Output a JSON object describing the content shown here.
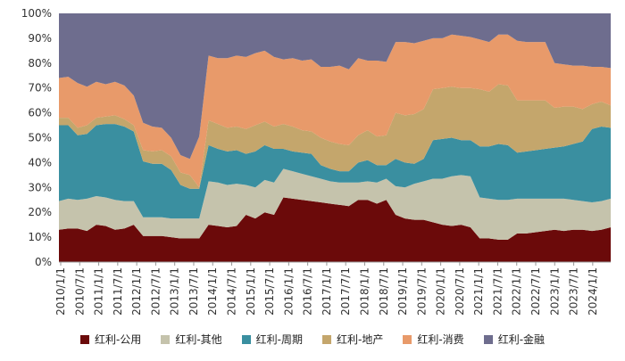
{
  "chart_data": {
    "type": "area",
    "stacked": true,
    "percent": true,
    "ylim": [
      0,
      100
    ],
    "y_ticks": [
      "0%",
      "10%",
      "20%",
      "30%",
      "40%",
      "50%",
      "60%",
      "70%",
      "80%",
      "90%",
      "100%"
    ],
    "x_ticks": [
      "2010/1/1",
      "2010/7/1",
      "2011/1/1",
      "2011/7/1",
      "2012/1/1",
      "2012/7/1",
      "2013/1/1",
      "2013/7/1",
      "2014/1/1",
      "2014/7/1",
      "2015/1/1",
      "2015/7/1",
      "2016/1/1",
      "2016/7/1",
      "2017/1/1",
      "2017/7/1",
      "2018/1/1",
      "2018/7/1",
      "2019/1/1",
      "2019/7/1",
      "2020/1/1",
      "2020/7/1",
      "2021/1/1",
      "2021/7/1",
      "2022/1/1",
      "2022/7/1",
      "2023/1/1",
      "2023/7/1",
      "2024/1/1"
    ],
    "grid": false,
    "legend_position": "bottom",
    "colors": [
      "#6b0a0a",
      "#c5c3ac",
      "#3a8fa0",
      "#c4a66c",
      "#e89a6a",
      "#6e6d8e"
    ],
    "series": [
      {
        "name": "红利-公用",
        "values": [
          13.0,
          13.5,
          13.5,
          12.5,
          15.0,
          14.5,
          13.0,
          13.5,
          15.0,
          10.5,
          10.5,
          10.5,
          10.0,
          9.5,
          9.5,
          9.5,
          15.0,
          14.5,
          14.0,
          14.5,
          19.0,
          17.5,
          20.0,
          19.0,
          26.0,
          25.5,
          25.0,
          24.5,
          24.0,
          23.5,
          23.0,
          22.5,
          25.0,
          25.0,
          23.5,
          25.0,
          19.0,
          17.5,
          17.0,
          17.0,
          16.0,
          15.0,
          14.5,
          15.0,
          14.0,
          9.5,
          9.5,
          9.0,
          9.0,
          11.5,
          11.5,
          12.0,
          12.5,
          13.0,
          12.5,
          13.0,
          13.0,
          12.5,
          13.0,
          14.0
        ]
      },
      {
        "name": "红利-其他",
        "values": [
          11.5,
          12.0,
          11.5,
          13.0,
          11.5,
          11.5,
          12.0,
          11.0,
          9.5,
          7.5,
          7.5,
          7.5,
          7.5,
          8.0,
          8.0,
          8.0,
          17.5,
          17.5,
          17.0,
          17.0,
          12.0,
          12.5,
          13.0,
          13.0,
          11.5,
          11.0,
          10.5,
          10.0,
          9.5,
          9.0,
          9.0,
          9.5,
          7.0,
          7.5,
          8.5,
          8.5,
          11.5,
          12.5,
          14.5,
          15.5,
          17.5,
          18.5,
          20.0,
          20.0,
          20.5,
          16.5,
          16.0,
          16.0,
          16.0,
          14.0,
          14.0,
          13.5,
          13.0,
          12.5,
          13.0,
          12.0,
          11.5,
          11.5,
          11.5,
          11.5
        ]
      },
      {
        "name": "红利-周期",
        "values": [
          30.5,
          29.5,
          26.0,
          26.0,
          28.5,
          29.5,
          30.5,
          30.0,
          28.0,
          22.5,
          21.5,
          21.5,
          19.5,
          13.5,
          12.0,
          12.0,
          14.5,
          13.5,
          13.5,
          13.5,
          12.5,
          14.5,
          14.0,
          13.5,
          8.0,
          8.0,
          8.5,
          9.0,
          5.5,
          5.0,
          4.5,
          4.5,
          8.0,
          8.5,
          7.0,
          5.5,
          11.0,
          10.0,
          8.0,
          9.0,
          15.5,
          16.0,
          15.5,
          14.0,
          14.5,
          20.5,
          21.0,
          22.5,
          22.0,
          18.5,
          19.0,
          19.5,
          20.0,
          20.5,
          21.0,
          22.5,
          24.0,
          29.5,
          30.0,
          28.5
        ]
      },
      {
        "name": "红利-地产",
        "values": [
          3.0,
          3.0,
          3.0,
          3.5,
          3.0,
          3.0,
          3.5,
          3.0,
          2.5,
          4.5,
          5.0,
          5.5,
          5.5,
          5.0,
          5.5,
          0.5,
          10.0,
          10.0,
          9.5,
          9.5,
          10.0,
          10.5,
          9.5,
          9.0,
          10.0,
          10.0,
          9.0,
          9.0,
          11.0,
          11.0,
          11.0,
          10.5,
          11.0,
          12.0,
          11.5,
          12.0,
          18.5,
          19.0,
          20.0,
          20.0,
          20.5,
          20.5,
          20.5,
          21.0,
          21.0,
          23.0,
          22.0,
          24.0,
          24.0,
          21.0,
          20.5,
          20.0,
          19.5,
          16.0,
          16.0,
          15.0,
          13.0,
          10.0,
          10.0,
          9.0
        ]
      },
      {
        "name": "红利-消费",
        "values": [
          16.0,
          16.5,
          18.0,
          15.5,
          14.5,
          13.0,
          13.5,
          13.5,
          12.0,
          11.0,
          10.0,
          9.0,
          7.5,
          7.0,
          6.5,
          20.5,
          26.0,
          26.5,
          28.0,
          28.5,
          29.0,
          29.0,
          28.5,
          28.0,
          26.0,
          27.5,
          28.0,
          29.0,
          28.5,
          30.0,
          31.5,
          30.5,
          31.0,
          28.0,
          30.5,
          29.5,
          28.5,
          29.5,
          28.5,
          27.5,
          20.5,
          20.0,
          21.0,
          21.0,
          20.5,
          20.0,
          20.0,
          20.0,
          20.5,
          24.0,
          23.5,
          23.5,
          23.5,
          18.0,
          17.0,
          16.5,
          17.5,
          15.0,
          14.0,
          15.0
        ]
      },
      {
        "name": "红利-金融",
        "values": [
          26.0,
          25.5,
          28.0,
          29.5,
          27.5,
          28.5,
          27.5,
          29.0,
          33.0,
          44.0,
          45.5,
          46.0,
          50.0,
          57.0,
          58.5,
          49.5,
          17.0,
          18.0,
          18.0,
          17.5,
          17.5,
          16.0,
          15.0,
          17.5,
          18.5,
          18.0,
          19.0,
          18.5,
          21.5,
          21.5,
          21.0,
          22.5,
          18.0,
          19.0,
          19.0,
          19.5,
          11.5,
          11.5,
          12.0,
          11.0,
          10.0,
          10.0,
          8.5,
          9.0,
          10.0,
          10.5,
          11.5,
          8.5,
          8.5,
          11.0,
          11.5,
          11.5,
          11.5,
          20.0,
          20.5,
          21.0,
          21.0,
          21.5,
          21.5,
          22.0
        ]
      }
    ]
  }
}
